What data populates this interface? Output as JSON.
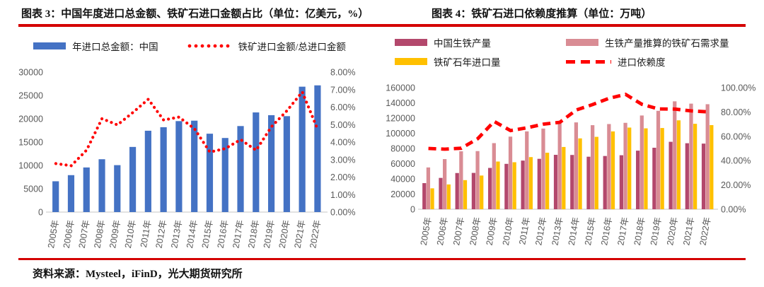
{
  "page": {
    "titles": {
      "left": "图表 3：中国年度进口总金额、铁矿石进口金额占比（单位：亿美元，%）",
      "right": "图表 4：铁矿石进口依赖度推算（单位：万吨）"
    },
    "source": "资料来源：Mysteel，iFinD，光大期货研究所"
  },
  "colors": {
    "divider_red": "#d40000",
    "bar_blue": "#4472C4",
    "bar_maroon": "#B3486C",
    "bar_salmon": "#D98C94",
    "bar_gold": "#FFC000",
    "line_red": "#FF0000",
    "axis_text": "#595959"
  },
  "chart_data": [
    {
      "type": "bar",
      "title": "中国年度进口总金额、铁矿石进口金额占比（单位：亿美元，%）",
      "categories": [
        "2005年",
        "2006年",
        "2007年",
        "2008年",
        "2009年",
        "2010年",
        "2011年",
        "2012年",
        "2013年",
        "2014年",
        "2015年",
        "2016年",
        "2017年",
        "2018年",
        "2019年",
        "2020年",
        "2021年",
        "2022年"
      ],
      "series": [
        {
          "name": "年进口总金额：中国",
          "type": "bar",
          "axis": "left",
          "color": "#4472C4",
          "values": [
            6600,
            7915,
            9561,
            11326,
            10059,
            13962,
            17435,
            18184,
            19499,
            19592,
            16796,
            15879,
            18438,
            21357,
            20769,
            20556,
            26875,
            27160
          ]
        },
        {
          "name": "铁矿进口金额/总进口金额",
          "type": "line",
          "style": "dotted",
          "axis": "right",
          "color": "#FF0000",
          "values": [
            2.77,
            2.65,
            3.54,
            5.34,
            4.98,
            5.69,
            6.45,
            5.26,
            5.43,
            4.76,
            3.43,
            3.63,
            4.14,
            3.53,
            4.88,
            5.79,
            6.87,
            4.72
          ]
        }
      ],
      "left_axis": {
        "min": 0,
        "max": 30000,
        "ticks": [
          "0",
          "5000",
          "10000",
          "15000",
          "20000",
          "25000",
          "30000"
        ]
      },
      "right_axis": {
        "min": 0,
        "max": 8,
        "ticks": [
          "0.00%",
          "1.00%",
          "2.00%",
          "3.00%",
          "4.00%",
          "5.00%",
          "6.00%",
          "7.00%",
          "8.00%"
        ]
      },
      "grid": false,
      "legend_position": "top"
    },
    {
      "type": "bar",
      "title": "铁矿石进口依赖度推算（单位：万吨）",
      "categories": [
        "2005年",
        "2006年",
        "2007年",
        "2008年",
        "2009年",
        "2010年",
        "2011年",
        "2012年",
        "2013年",
        "2014年",
        "2015年",
        "2016年",
        "2017年",
        "2018年",
        "2019年",
        "2020年",
        "2021年",
        "2022年"
      ],
      "series": [
        {
          "name": "中国生铁产量",
          "type": "bar",
          "axis": "left",
          "color": "#B3486C",
          "values": [
            34375,
            41245,
            47652,
            47824,
            54375,
            59734,
            64042,
            66354,
            71607,
            71426,
            69141,
            70074,
            71076,
            77105,
            80937,
            88752,
            86857,
            86383
          ]
        },
        {
          "name": "生铁产量推算的铁矿石需求量",
          "type": "bar",
          "axis": "left",
          "color": "#D98C94",
          "values": [
            55000,
            65992,
            76243,
            76518,
            87000,
            95574,
            102467,
            106166,
            114571,
            114282,
            110626,
            112118,
            113722,
            123368,
            129499,
            142003,
            138971,
            138213
          ]
        },
        {
          "name": "铁矿石年进口量",
          "type": "bar",
          "axis": "left",
          "color": "#FFC000",
          "values": [
            27526,
            32630,
            38309,
            44356,
            62778,
            61864,
            68608,
            74355,
            81941,
            93251,
            95272,
            102412,
            107474,
            106447,
            106895,
            117010,
            112432,
            110686
          ]
        },
        {
          "name": "进口依赖度",
          "type": "line",
          "style": "dashed",
          "axis": "right",
          "color": "#FF0000",
          "values": [
            50.0,
            49.4,
            50.2,
            58.0,
            72.2,
            64.7,
            67.0,
            70.0,
            71.5,
            81.6,
            86.1,
            91.3,
            94.5,
            86.3,
            82.5,
            82.4,
            80.9,
            80.1
          ]
        }
      ],
      "left_axis": {
        "min": 0,
        "max": 160000,
        "ticks": [
          "0",
          "20000",
          "40000",
          "60000",
          "80000",
          "100000",
          "120000",
          "140000",
          "160000"
        ]
      },
      "right_axis": {
        "min": 0,
        "max": 100,
        "ticks": [
          "0.00%",
          "20.00%",
          "40.00%",
          "60.00%",
          "80.00%",
          "100.00%"
        ]
      },
      "grid": false,
      "legend_position": "top"
    }
  ]
}
